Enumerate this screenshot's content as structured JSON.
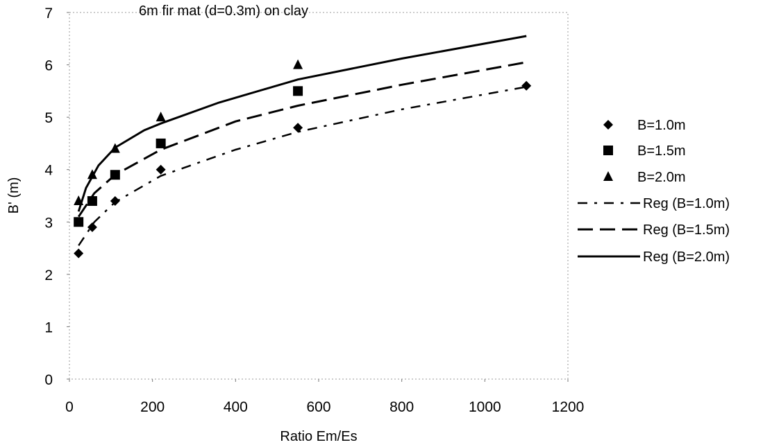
{
  "chart_data": {
    "type": "scatter",
    "title": "6m fir mat (d=0.3m) on clay",
    "xlabel": "Ratio Em/Es",
    "ylabel": "B' (m)",
    "xlim": [
      0,
      1200
    ],
    "ylim": [
      0,
      7
    ],
    "x_ticks": [
      "0",
      "200",
      "400",
      "600",
      "800",
      "1000",
      "1200"
    ],
    "y_ticks": [
      "0",
      "1",
      "2",
      "3",
      "4",
      "5",
      "6",
      "7"
    ],
    "grid": false,
    "legend_position": "right",
    "series": [
      {
        "name": "B=1.0m",
        "marker": "diamond",
        "x": [
          22,
          55,
          110,
          220,
          550,
          1100
        ],
        "y": [
          2.4,
          2.9,
          3.4,
          4.0,
          4.8,
          5.6
        ]
      },
      {
        "name": "B=1.5m",
        "marker": "square",
        "x": [
          22,
          55,
          110,
          220,
          550
        ],
        "y": [
          3.0,
          3.4,
          3.9,
          4.5,
          5.5
        ]
      },
      {
        "name": "B=2.0m",
        "marker": "triangle",
        "x": [
          22,
          55,
          110,
          220,
          550
        ],
        "y": [
          3.4,
          3.9,
          4.4,
          5.0,
          6.0
        ]
      }
    ],
    "regressions": [
      {
        "name": "Reg (B=1.0m)",
        "style": "dash-dot",
        "x": [
          22,
          60,
          110,
          220,
          400,
          550,
          800,
          1100
        ],
        "y": [
          2.55,
          3.0,
          3.38,
          3.88,
          4.38,
          4.72,
          5.15,
          5.58
        ]
      },
      {
        "name": "Reg (B=1.5m)",
        "style": "dashed",
        "x": [
          22,
          60,
          110,
          220,
          400,
          550,
          800,
          1100
        ],
        "y": [
          3.1,
          3.55,
          3.9,
          4.38,
          4.92,
          5.22,
          5.62,
          6.05
        ]
      },
      {
        "name": "Reg (B=2.0m)",
        "style": "solid",
        "x": [
          22,
          40,
          70,
          110,
          180,
          220,
          360,
          550,
          800,
          1100
        ],
        "y": [
          3.2,
          3.65,
          4.08,
          4.42,
          4.75,
          4.88,
          5.28,
          5.72,
          6.12,
          6.55
        ]
      }
    ]
  }
}
